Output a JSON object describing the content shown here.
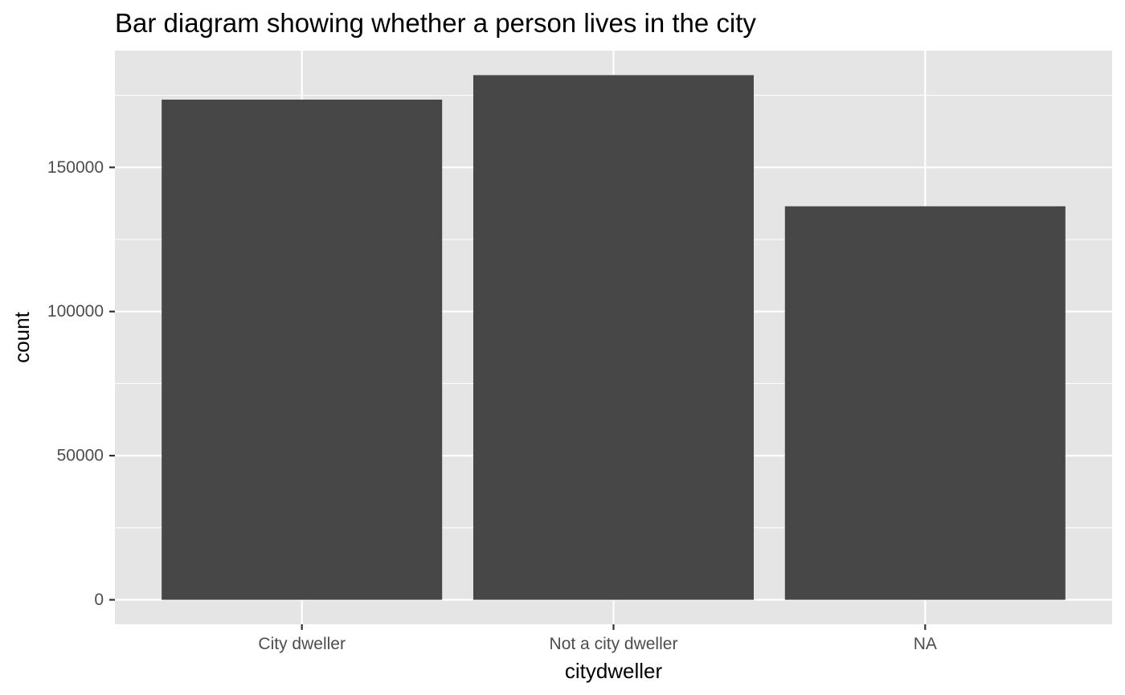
{
  "chart_data": {
    "type": "bar",
    "title": "Bar diagram showing whether a person lives in the city",
    "xlabel": "citydweller",
    "ylabel": "count",
    "categories": [
      "City dweller",
      "Not a city dweller",
      "NA"
    ],
    "values": [
      173500,
      182000,
      136500
    ],
    "ylim": [
      -8500,
      190500
    ],
    "yticks": [
      0,
      50000,
      100000,
      150000
    ],
    "ytick_labels": [
      "0",
      "50000",
      "100000",
      "150000"
    ],
    "grid": true,
    "legend": "none",
    "colors": {
      "bar": "#474747",
      "panel": "#e5e5e5",
      "grid": "#ffffff",
      "tick": "#333333",
      "tick_text": "#4d4d4d"
    }
  }
}
